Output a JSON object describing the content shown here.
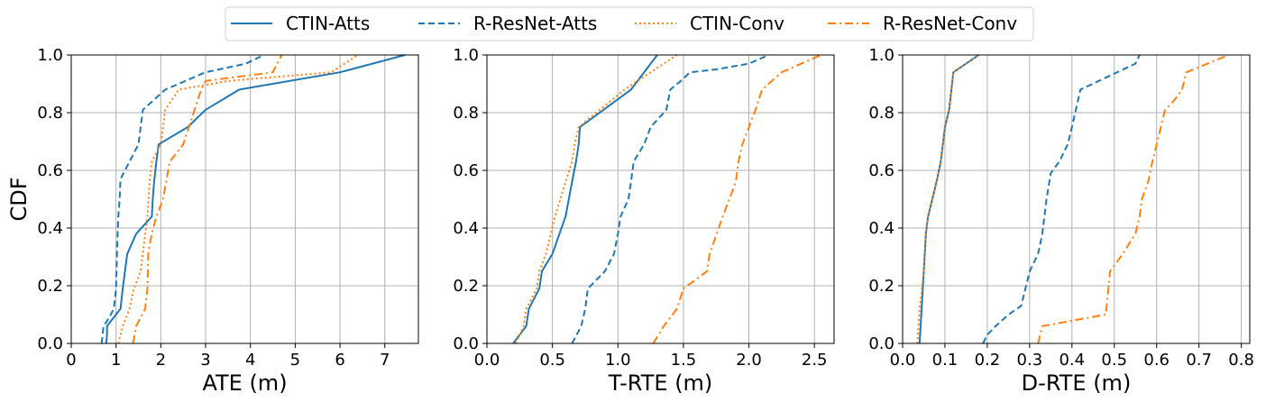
{
  "legend": {
    "placement": "top-center",
    "entries": [
      {
        "label": "CTIN-Atts",
        "color": "#1f77b4",
        "style": "solid"
      },
      {
        "label": "R-ResNet-Atts",
        "color": "#1f77b4",
        "style": "dashed"
      },
      {
        "label": "CTIN-Conv",
        "color": "#ff7f0e",
        "style": "dotted"
      },
      {
        "label": "R-ResNet-Conv",
        "color": "#ff7f0e",
        "style": "dashdot"
      }
    ]
  },
  "chart_data": [
    {
      "type": "line",
      "title": "",
      "xlabel": "ATE (m)",
      "ylabel": "CDF",
      "xlim": [
        0,
        7.75
      ],
      "ylim": [
        0,
        1.0
      ],
      "xticks": [
        "0",
        "1",
        "2",
        "3",
        "4",
        "5",
        "6",
        "7"
      ],
      "yticks": [
        "0.0",
        "0.2",
        "0.4",
        "0.6",
        "0.8",
        "1.0"
      ],
      "grid": true,
      "series": [
        {
          "name": "CTIN-Atts",
          "x": [
            0.78,
            0.8,
            0.8,
            1.1,
            1.15,
            1.2,
            1.25,
            1.45,
            1.8,
            1.82,
            1.85,
            1.9,
            1.95,
            2.6,
            3.0,
            3.75,
            6.0,
            7.45
          ],
          "y": [
            0.0,
            0.03,
            0.06,
            0.12,
            0.19,
            0.25,
            0.31,
            0.38,
            0.44,
            0.5,
            0.56,
            0.63,
            0.69,
            0.75,
            0.81,
            0.88,
            0.94,
            1.0
          ]
        },
        {
          "name": "R-ResNet-Atts",
          "x": [
            0.68,
            0.72,
            0.85,
            0.95,
            1.0,
            1.02,
            1.05,
            1.08,
            1.1,
            1.3,
            1.5,
            1.6,
            2.1,
            3.0,
            3.9,
            4.3
          ],
          "y": [
            0.0,
            0.06,
            0.09,
            0.12,
            0.19,
            0.31,
            0.44,
            0.5,
            0.57,
            0.63,
            0.69,
            0.81,
            0.88,
            0.94,
            0.97,
            1.0
          ]
        },
        {
          "name": "CTIN-Conv",
          "x": [
            1.05,
            1.15,
            1.3,
            1.4,
            1.55,
            1.7,
            1.75,
            1.8,
            2.0,
            2.1,
            2.4,
            3.5,
            5.8,
            6.4
          ],
          "y": [
            0.0,
            0.06,
            0.12,
            0.19,
            0.25,
            0.44,
            0.56,
            0.63,
            0.69,
            0.81,
            0.88,
            0.91,
            0.94,
            1.0
          ]
        },
        {
          "name": "R-ResNet-Conv",
          "x": [
            1.38,
            1.45,
            1.65,
            1.7,
            1.72,
            1.75,
            1.8,
            1.9,
            2.05,
            2.2,
            2.5,
            2.9,
            3.0,
            4.5,
            4.6,
            4.7
          ],
          "y": [
            0.0,
            0.06,
            0.12,
            0.19,
            0.31,
            0.34,
            0.38,
            0.44,
            0.5,
            0.63,
            0.69,
            0.88,
            0.91,
            0.94,
            0.97,
            1.0
          ]
        }
      ]
    },
    {
      "type": "line",
      "title": "",
      "xlabel": "T-RTE (m)",
      "ylabel": "",
      "xlim": [
        0,
        2.65
      ],
      "ylim": [
        0,
        1.0
      ],
      "xticks": [
        "0.0",
        "0.5",
        "1.0",
        "1.5",
        "2.0",
        "2.5"
      ],
      "yticks": [
        "0.0",
        "0.2",
        "0.4",
        "0.6",
        "0.8",
        "1.0"
      ],
      "grid": true,
      "series": [
        {
          "name": "CTIN-Atts",
          "x": [
            0.2,
            0.3,
            0.32,
            0.4,
            0.42,
            0.5,
            0.6,
            0.65,
            0.68,
            0.7,
            0.71,
            1.1,
            1.3
          ],
          "y": [
            0.0,
            0.06,
            0.12,
            0.19,
            0.25,
            0.31,
            0.44,
            0.56,
            0.63,
            0.69,
            0.75,
            0.88,
            1.0
          ]
        },
        {
          "name": "R-ResNet-Atts",
          "x": [
            0.65,
            0.72,
            0.75,
            0.77,
            0.9,
            0.97,
            1.0,
            1.02,
            1.08,
            1.1,
            1.12,
            1.2,
            1.25,
            1.37,
            1.4,
            1.48,
            1.55,
            1.75,
            2.0,
            2.15
          ],
          "y": [
            0.0,
            0.06,
            0.12,
            0.19,
            0.25,
            0.31,
            0.38,
            0.44,
            0.5,
            0.56,
            0.63,
            0.69,
            0.75,
            0.81,
            0.88,
            0.91,
            0.94,
            0.95,
            0.97,
            1.0
          ]
        },
        {
          "name": "CTIN-Conv",
          "x": [
            0.22,
            0.28,
            0.3,
            0.38,
            0.4,
            0.45,
            0.52,
            0.6,
            0.65,
            0.67,
            0.7,
            1.05,
            1.45
          ],
          "y": [
            0.0,
            0.06,
            0.12,
            0.19,
            0.25,
            0.31,
            0.44,
            0.56,
            0.63,
            0.69,
            0.75,
            0.88,
            1.0
          ]
        },
        {
          "name": "R-ResNet-Conv",
          "x": [
            1.27,
            1.35,
            1.45,
            1.5,
            1.68,
            1.7,
            1.8,
            1.85,
            1.9,
            1.92,
            1.95,
            2.0,
            2.05,
            2.1,
            2.25,
            2.55
          ],
          "y": [
            0.0,
            0.06,
            0.12,
            0.19,
            0.25,
            0.31,
            0.44,
            0.5,
            0.56,
            0.63,
            0.69,
            0.75,
            0.81,
            0.88,
            0.94,
            1.0
          ]
        }
      ]
    },
    {
      "type": "line",
      "title": "",
      "xlabel": "D-RTE (m)",
      "ylabel": "",
      "xlim": [
        0,
        0.82
      ],
      "ylim": [
        0,
        1.0
      ],
      "xticks": [
        "0.0",
        "0.1",
        "0.2",
        "0.3",
        "0.4",
        "0.5",
        "0.6",
        "0.7",
        "0.8"
      ],
      "yticks": [
        "0.0",
        "0.2",
        "0.4",
        "0.6",
        "0.8",
        "1.0"
      ],
      "grid": true,
      "series": [
        {
          "name": "CTIN-Atts",
          "x": [
            0.04,
            0.045,
            0.05,
            0.055,
            0.06,
            0.07,
            0.08,
            0.09,
            0.1,
            0.11,
            0.12,
            0.18
          ],
          "y": [
            0.0,
            0.12,
            0.25,
            0.38,
            0.44,
            0.5,
            0.56,
            0.63,
            0.75,
            0.81,
            0.94,
            1.0
          ]
        },
        {
          "name": "R-ResNet-Atts",
          "x": [
            0.19,
            0.2,
            0.22,
            0.25,
            0.28,
            0.29,
            0.3,
            0.32,
            0.33,
            0.34,
            0.35,
            0.37,
            0.39,
            0.4,
            0.42,
            0.55,
            0.56
          ],
          "y": [
            0.0,
            0.03,
            0.06,
            0.1,
            0.13,
            0.19,
            0.25,
            0.31,
            0.38,
            0.5,
            0.59,
            0.63,
            0.69,
            0.75,
            0.88,
            0.97,
            1.0
          ]
        },
        {
          "name": "CTIN-Conv",
          "x": [
            0.035,
            0.04,
            0.05,
            0.055,
            0.06,
            0.07,
            0.08,
            0.09,
            0.1,
            0.11,
            0.12,
            0.18
          ],
          "y": [
            0.0,
            0.12,
            0.25,
            0.38,
            0.44,
            0.5,
            0.56,
            0.63,
            0.75,
            0.81,
            0.94,
            1.0
          ]
        },
        {
          "name": "R-ResNet-Conv",
          "x": [
            0.32,
            0.33,
            0.48,
            0.49,
            0.52,
            0.55,
            0.56,
            0.565,
            0.58,
            0.59,
            0.6,
            0.61,
            0.62,
            0.64,
            0.66,
            0.67,
            0.77
          ],
          "y": [
            0.0,
            0.06,
            0.1,
            0.25,
            0.31,
            0.38,
            0.44,
            0.5,
            0.56,
            0.63,
            0.69,
            0.75,
            0.81,
            0.84,
            0.88,
            0.94,
            1.0
          ]
        }
      ]
    }
  ]
}
